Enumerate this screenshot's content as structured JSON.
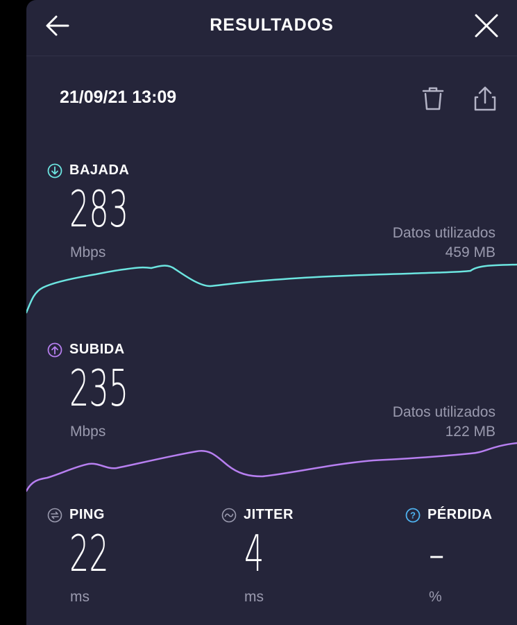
{
  "header": {
    "title": "RESULTADOS",
    "back_icon": "arrow-left-icon",
    "close_icon": "close-icon"
  },
  "result": {
    "datetime": "21/09/21 13:09",
    "delete_icon": "trash-icon",
    "share_icon": "share-icon"
  },
  "download": {
    "label": "BAJADA",
    "icon": "arrow-down-circle-icon",
    "value": "283",
    "unit": "Mbps",
    "data_used_label": "Datos utilizados",
    "data_used_value": "459 MB",
    "color": "#6ce5e0"
  },
  "upload": {
    "label": "SUBIDA",
    "icon": "arrow-up-circle-icon",
    "value": "235",
    "unit": "Mbps",
    "data_used_label": "Datos utilizados",
    "data_used_value": "122 MB",
    "color": "#b77ff0"
  },
  "ping": {
    "label": "PING",
    "icon": "ping-icon",
    "value": "22",
    "unit": "ms"
  },
  "jitter": {
    "label": "JITTER",
    "icon": "jitter-icon",
    "value": "4",
    "unit": "ms"
  },
  "loss": {
    "label": "PÉRDIDA",
    "icon": "question-circle-icon",
    "value": "–",
    "unit": "%",
    "color": "#4fb3f0"
  },
  "colors": {
    "background": "#25253a",
    "text_secondary": "#9a9aae"
  }
}
